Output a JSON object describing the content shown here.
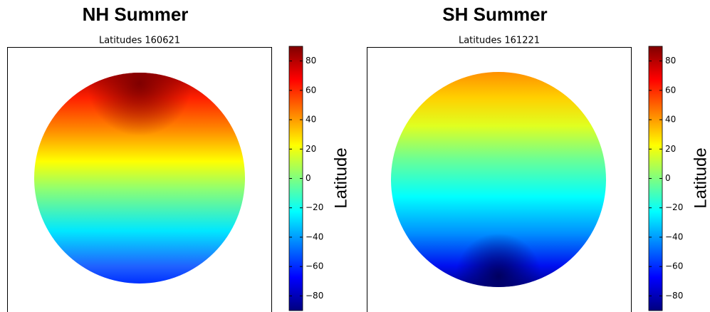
{
  "chart_data": [
    {
      "type": "heatmap",
      "title": "NH Summer",
      "subtitle": "Latitudes 160621",
      "colorbar_label": "Latitude",
      "clim": [
        -90,
        90
      ],
      "cticks": [
        80,
        60,
        40,
        20,
        0,
        {
          "value": -20,
          "label": "−20"
        },
        {
          "value": -40,
          "label": "−40"
        },
        {
          "value": -60,
          "label": "−60"
        },
        {
          "value": -80,
          "label": "−80"
        }
      ]
    },
    {
      "type": "heatmap",
      "title": "SH Summer",
      "subtitle": "Latitudes 161221",
      "colorbar_label": "Latitude",
      "clim": [
        -90,
        90
      ],
      "cticks": [
        80,
        60,
        40,
        20,
        0,
        {
          "value": -20,
          "label": "−20"
        },
        {
          "value": -40,
          "label": "−40"
        },
        {
          "value": -60,
          "label": "−60"
        },
        {
          "value": -80,
          "label": "−80"
        }
      ]
    }
  ]
}
